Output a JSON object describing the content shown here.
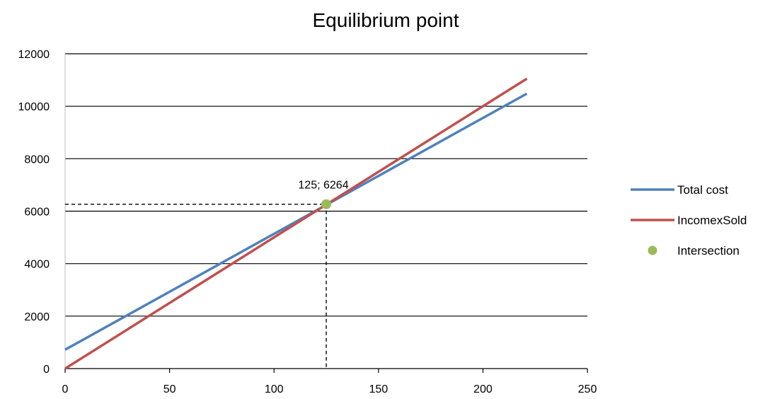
{
  "chart_data": {
    "type": "line",
    "title": "Equilibrium point",
    "xlabel": "",
    "ylabel": "",
    "xlim": [
      0,
      250
    ],
    "ylim": [
      0,
      12000
    ],
    "x_ticks": [
      0,
      50,
      100,
      150,
      200,
      250
    ],
    "y_ticks": [
      0,
      2000,
      4000,
      6000,
      8000,
      10000,
      12000
    ],
    "grid": "horizontal",
    "legend_position": "right",
    "series": [
      {
        "name": "Total cost",
        "type": "line",
        "color": "#4f81bd",
        "x": [
          0,
          221
        ],
        "y": [
          720,
          10480
        ]
      },
      {
        "name": "IncomexSold",
        "type": "line",
        "color": "#c0504d",
        "x": [
          0,
          221
        ],
        "y": [
          0,
          11050
        ]
      },
      {
        "name": "Intersection",
        "type": "scatter",
        "color": "#9bbb59",
        "x": [
          125
        ],
        "y": [
          6264
        ]
      }
    ],
    "annotations": [
      {
        "text": "125; 6264",
        "x": 125,
        "y": 6264,
        "guides": "dashed"
      }
    ]
  }
}
